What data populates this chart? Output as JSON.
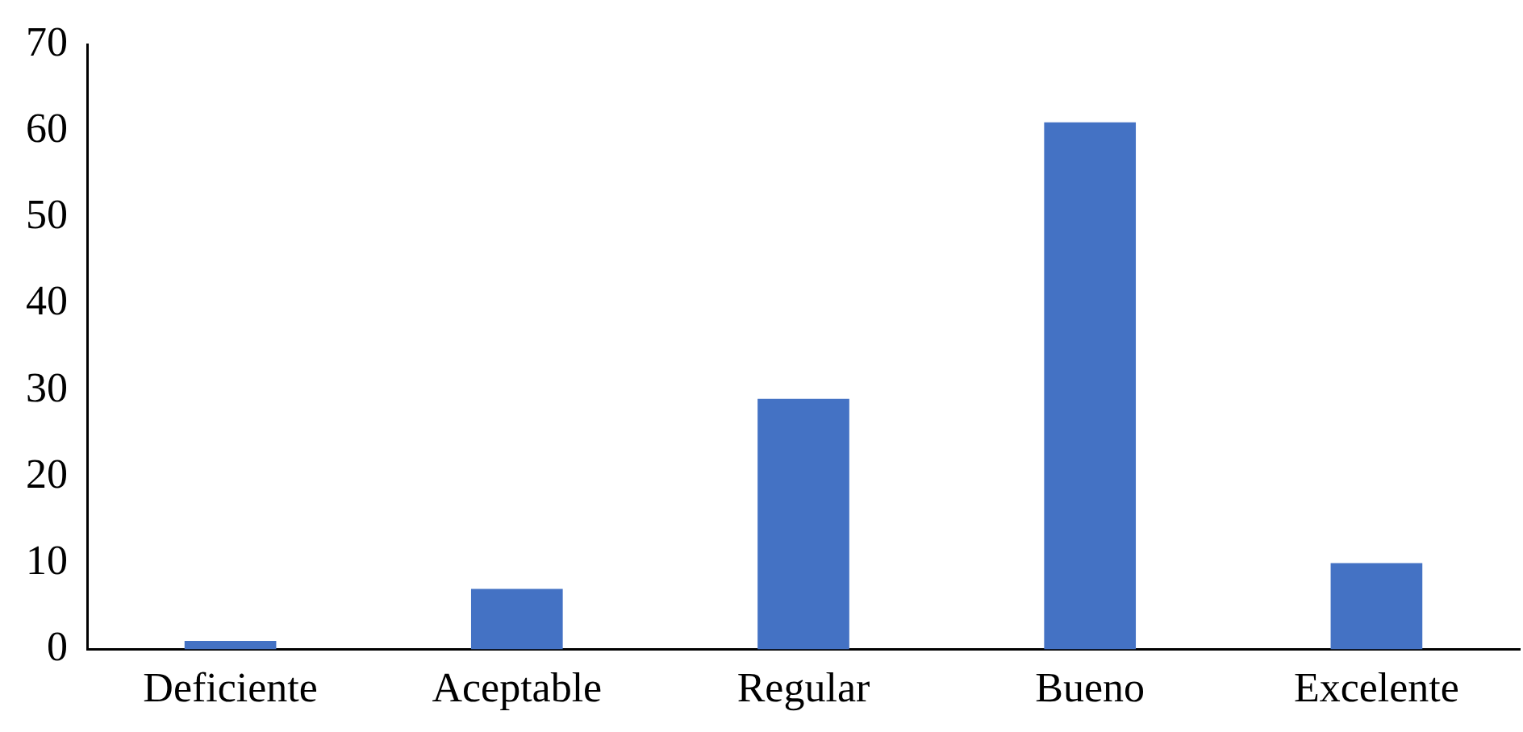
{
  "chart_data": {
    "type": "bar",
    "categories": [
      "Deficiente",
      "Aceptable",
      "Regular",
      "Bueno",
      "Excelente"
    ],
    "values": [
      1,
      7,
      29,
      61,
      10
    ],
    "color": "#4472c4",
    "ylim": [
      0,
      70
    ],
    "yticks": [
      0,
      10,
      20,
      30,
      40,
      50,
      60,
      70
    ],
    "grid": false,
    "legend": false
  }
}
